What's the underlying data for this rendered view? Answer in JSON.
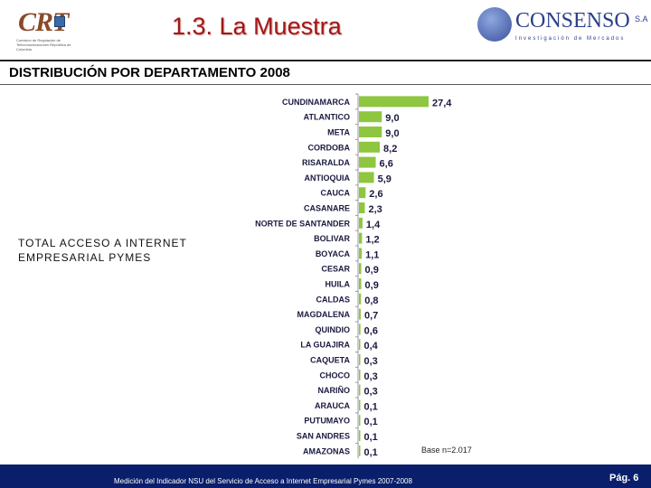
{
  "header": {
    "title": "1.3. La Muestra",
    "crt_logo_text": "CRT",
    "crt_subtitle": "Comisión de Regulación de Telecomunicaciones República de Colombia",
    "consenso_name": "CONSENSO",
    "consenso_sa": "S.A",
    "consenso_tagline": "Investigación de Mercados"
  },
  "subtitle": "DISTRIBUCIÓN POR DEPARTAMENTO 2008",
  "side_label_line1": "TOTAL ACCESO A  INTERNET",
  "side_label_line2": "EMPRESARIAL PYMES",
  "base_note": "Base n=2.017",
  "footer": {
    "text": "Medición del Indicador NSU del Servicio de Acceso a Internet Empresarial Pymes 2007-2008",
    "page": "Pág. 6"
  },
  "colors": {
    "bar": "#8ec63f",
    "title": "#a01818",
    "footer": "#0a1f6b"
  },
  "chart_data": {
    "type": "bar",
    "orientation": "horizontal",
    "categories": [
      "CUNDINAMARCA",
      "ATLANTICO",
      "META",
      "CORDOBA",
      "RISARALDA",
      "ANTIOQUIA",
      "CAUCA",
      "CASANARE",
      "NORTE DE SANTANDER",
      "BOLIVAR",
      "BOYACA",
      "CESAR",
      "HUILA",
      "CALDAS",
      "MAGDALENA",
      "QUINDIO",
      "LA GUAJIRA",
      "CAQUETA",
      "CHOCO",
      "NARIÑO",
      "ARAUCA",
      "PUTUMAYO",
      "SAN ANDRES",
      "AMAZONAS"
    ],
    "values": [
      27.4,
      9.0,
      9.0,
      8.2,
      6.6,
      5.9,
      2.6,
      2.3,
      1.4,
      1.2,
      1.1,
      0.9,
      0.9,
      0.8,
      0.7,
      0.6,
      0.4,
      0.3,
      0.3,
      0.3,
      0.1,
      0.1,
      0.1,
      0.1
    ],
    "value_labels": [
      "27,4",
      "9,0",
      "9,0",
      "8,2",
      "6,6",
      "5,9",
      "2,6",
      "2,3",
      "1,4",
      "1,2",
      "1,1",
      "0,9",
      "0,9",
      "0,8",
      "0,7",
      "0,6",
      "0,4",
      "0,3",
      "0,3",
      "0,3",
      "0,1",
      "0,1",
      "0,1",
      "0,1"
    ],
    "title": "DISTRIBUCIÓN POR DEPARTAMENTO 2008",
    "xlim": [
      0,
      27.4
    ],
    "grid": false,
    "legend": "none"
  }
}
